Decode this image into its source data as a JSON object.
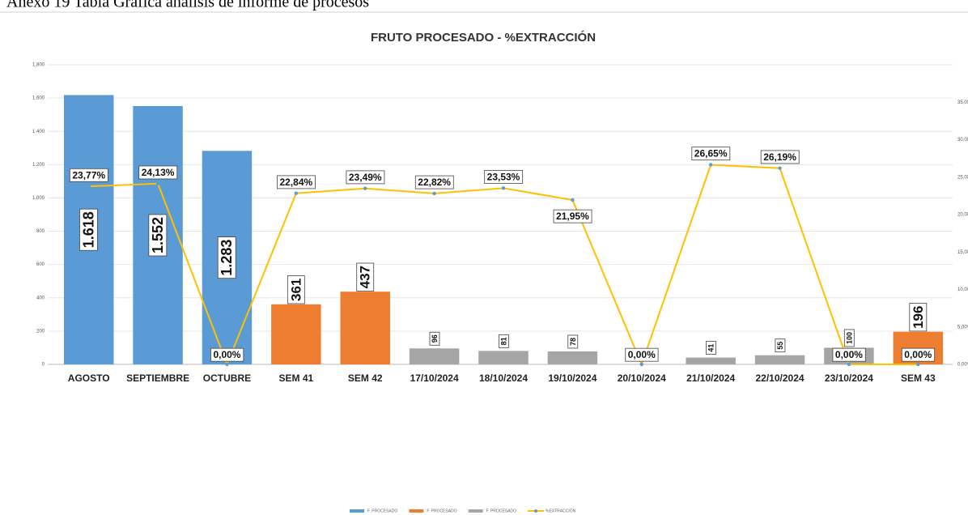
{
  "caption": "Anexo 19 Tabla Gráfica análisis de informe de procesos",
  "chart_data": {
    "type": "bar",
    "title": "FRUTO PROCESADO - %EXTRACCIÓN",
    "categories": [
      "AGOSTO",
      "SEPTIEMBRE",
      "OCTUBRE",
      "SEM 41",
      "SEM 42",
      "17/10/2024",
      "18/10/2024",
      "19/10/2024",
      "20/10/2024",
      "21/10/2024",
      "22/10/2024",
      "23/10/2024",
      "SEM 43"
    ],
    "series": [
      {
        "name": "F. PROCESADO",
        "color": "#5b9bd5",
        "values": [
          1618,
          1552,
          1283,
          null,
          null,
          null,
          null,
          null,
          null,
          null,
          null,
          null,
          null
        ],
        "value_labels": [
          "1.618",
          "1.552",
          "1.283",
          null,
          null,
          null,
          null,
          null,
          null,
          null,
          null,
          null,
          null
        ]
      },
      {
        "name": "F. PROCESADO",
        "color": "#ed7d31",
        "values": [
          null,
          null,
          null,
          361,
          437,
          null,
          null,
          null,
          null,
          null,
          null,
          null,
          196
        ]
      },
      {
        "name": "F. PROCESADO",
        "color": "#a5a5a5",
        "values": [
          null,
          null,
          null,
          null,
          null,
          96,
          81,
          78,
          null,
          41,
          55,
          100,
          null
        ]
      },
      {
        "name": "%EXTRACCIÓN",
        "type": "line",
        "axis": "y2",
        "color": "#ffc000",
        "values": [
          23.77,
          24.13,
          0,
          22.84,
          23.49,
          22.82,
          23.53,
          21.95,
          0,
          26.65,
          26.19,
          0,
          0
        ],
        "value_labels": [
          "23,77%",
          "24,13%",
          "0,00%",
          "22,84%",
          "23,49%",
          "22,82%",
          "23,53%",
          "21,95%",
          "0,00%",
          "26,65%",
          "26,19%",
          "0,00%",
          "0,00%"
        ]
      }
    ],
    "ylim": [
      0,
      1800
    ],
    "yticks": [
      0,
      200,
      400,
      600,
      800,
      {
        "value": 1000,
        "label": "1.000"
      },
      {
        "value": 1200,
        "label": "1.200"
      },
      {
        "value": 1400,
        "label": "1.400"
      },
      {
        "value": 1600,
        "label": "1.600"
      },
      {
        "value": 1800,
        "label": "1.800"
      }
    ],
    "y2lim": [
      0,
      40
    ],
    "y2ticks": [
      {
        "value": 0,
        "label": "0,00%"
      },
      {
        "value": 5,
        "label": "5,00%"
      },
      {
        "value": 10,
        "label": "10,00%"
      },
      {
        "value": 15,
        "label": "15,00%"
      },
      {
        "value": 20,
        "label": "20,00%"
      },
      {
        "value": 25,
        "label": "25,00%"
      },
      {
        "value": 30,
        "label": "30,00%"
      },
      {
        "value": 35,
        "label": "35,00%"
      }
    ],
    "grid": true,
    "legend": "bottom"
  }
}
